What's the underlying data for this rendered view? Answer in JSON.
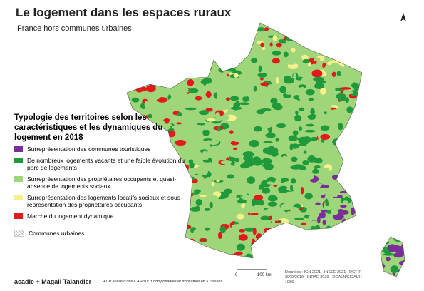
{
  "header": {
    "title": "Le logement dans les espaces ruraux",
    "subtitle": "France hors communes urbaines"
  },
  "legend": {
    "title": "Typologie des territoires selon les caractéristiques et les dynamiques du logement en 2018",
    "items": [
      {
        "label": "Surreprésentation des communes touristiques",
        "color": "#7b2d9b"
      },
      {
        "label": "De nombreux logements vacants et une faible évolution du parc de logements",
        "color": "#1f9a3a"
      },
      {
        "label": "Surreprésentation des propriétaires occupants et quasi-absence de logements sociaux",
        "color": "#9fd67a"
      },
      {
        "label": "Surreprésentation des logements locatifs sociaux et sous-représentation des propriétaires occupants",
        "color": "#f4f08a"
      },
      {
        "label": "Marché du logement dynamique",
        "color": "#e3191c"
      }
    ],
    "urban": "Communes urbaines"
  },
  "footer": {
    "credit": "acadie + Magali Talandier",
    "method": "ACP suivie d'une CAH sur 3 composantes et troncature en 5 classes.",
    "scale_start": "0",
    "scale_end": "100 km",
    "sources": "Données : IGN 2021 · INSEE 2021 · DGFIP 2009/2019 · INRAE 2020 · DGALN/SIDAUH 1986"
  }
}
